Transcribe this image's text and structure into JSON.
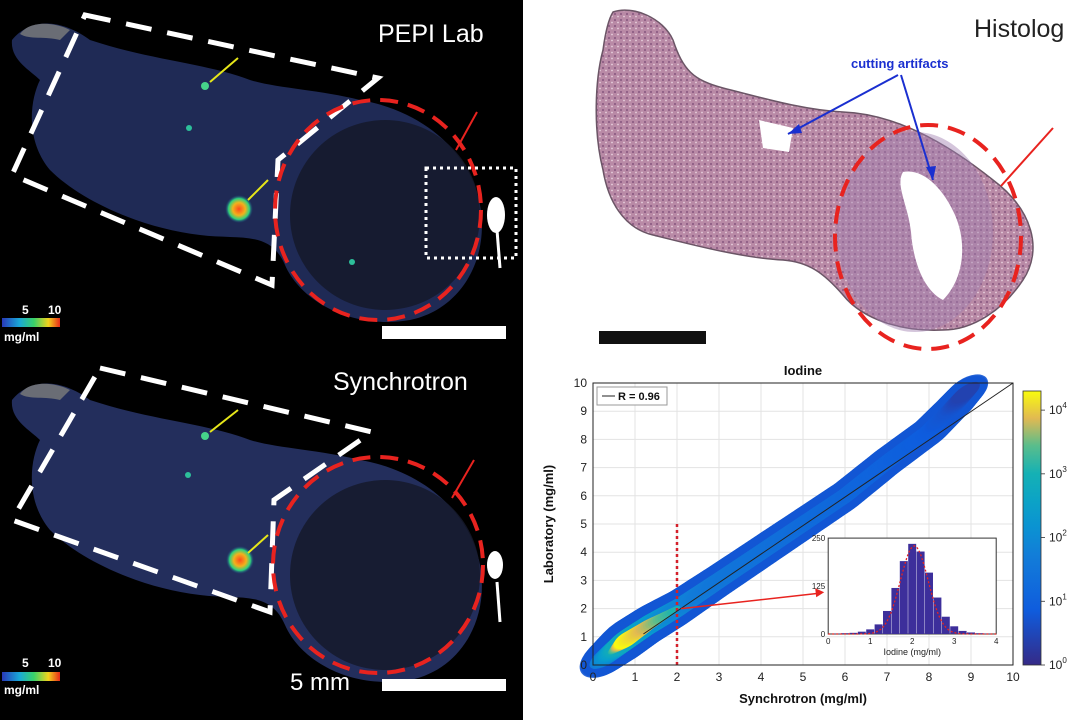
{
  "panels": {
    "lab": {
      "title": "PEPI Lab",
      "colorbar_ticks": [
        "5",
        "10"
      ],
      "colorbar_unit": "mg/ml"
    },
    "synchrotron": {
      "title": "Synchrotron",
      "colorbar_ticks": [
        "5",
        "10"
      ],
      "colorbar_unit": "mg/ml",
      "scalebar_label": "5 mm"
    },
    "histology": {
      "title": "Histolog",
      "annotation": "cutting artifacts"
    }
  },
  "colors": {
    "tumor_outline": "#e8231f",
    "region_outline": "#ffffff",
    "arrow_yellow": "#e6e619",
    "arrow_red": "#e8231f",
    "arrow_blue": "#1a2fd0",
    "histology_tissue": "#b98aa6",
    "histology_scalebar": "#111111"
  },
  "chart_data": {
    "type": "heatmap",
    "title": "Iodine",
    "xlabel": "Synchrotron (mg/ml)",
    "ylabel": "Laboratory (mg/ml)",
    "xlim": [
      0,
      10
    ],
    "ylim": [
      0,
      10
    ],
    "x_ticks": [
      "0",
      "1",
      "2",
      "3",
      "4",
      "5",
      "6",
      "7",
      "8",
      "9",
      "10"
    ],
    "y_ticks": [
      "0",
      "1",
      "2",
      "3",
      "4",
      "5",
      "6",
      "7",
      "8",
      "9",
      "10"
    ],
    "grid": true,
    "legend": {
      "label": "R = 0.96",
      "position": "top-left"
    },
    "fit_line": {
      "from": [
        1.2,
        1.1
      ],
      "to": [
        10,
        10
      ]
    },
    "threshold_x": 2,
    "colorbar": {
      "scale": "log",
      "ticks": [
        "10^0",
        "10^1",
        "10^2",
        "10^3",
        "10^4"
      ],
      "tick_exponents": [
        0,
        1,
        2,
        3,
        4
      ]
    },
    "density_ridge": [
      {
        "x": 0.35,
        "y": 0.35,
        "level": 2.6
      },
      {
        "x": 0.8,
        "y": 0.9,
        "level": 4.3
      },
      {
        "x": 1.3,
        "y": 1.4,
        "level": 3.8
      },
      {
        "x": 2.0,
        "y": 2.0,
        "level": 3.0
      },
      {
        "x": 3.0,
        "y": 3.0,
        "level": 2.4
      },
      {
        "x": 4.0,
        "y": 4.0,
        "level": 2.2
      },
      {
        "x": 5.0,
        "y": 5.0,
        "level": 2.0
      },
      {
        "x": 6.0,
        "y": 6.0,
        "level": 1.8
      },
      {
        "x": 7.0,
        "y": 7.2,
        "level": 1.6
      },
      {
        "x": 8.0,
        "y": 8.3,
        "level": 1.4
      },
      {
        "x": 8.6,
        "y": 9.2,
        "level": 1.1
      },
      {
        "x": 8.9,
        "y": 9.7,
        "level": 0.6
      }
    ],
    "inset": {
      "type": "bar",
      "xlabel": "Iodine (mg/ml)",
      "xlim": [
        0,
        4
      ],
      "ylim": [
        0,
        250
      ],
      "x_ticks": [
        "0",
        "1",
        "2",
        "3",
        "4"
      ],
      "y_ticks": [
        "0",
        "125",
        "250"
      ],
      "x": [
        0.2,
        0.4,
        0.6,
        0.8,
        1.0,
        1.2,
        1.4,
        1.6,
        1.8,
        2.0,
        2.2,
        2.4,
        2.6,
        2.8,
        3.0,
        3.2,
        3.4,
        3.6,
        3.8
      ],
      "values": [
        1,
        2,
        3,
        6,
        12,
        25,
        60,
        120,
        190,
        235,
        215,
        160,
        95,
        45,
        20,
        8,
        4,
        2,
        1
      ]
    }
  }
}
